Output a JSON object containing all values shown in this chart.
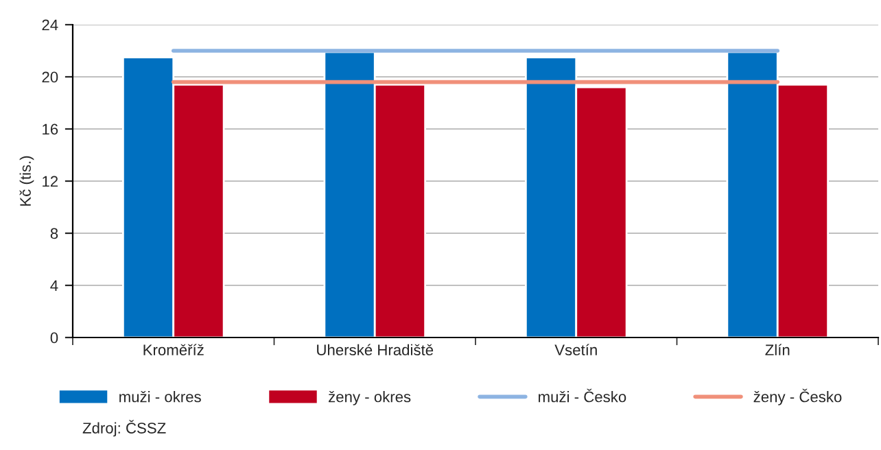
{
  "chart_data": {
    "type": "bar",
    "ylabel": "Kč (tis.)",
    "categories": [
      "Kroměříž",
      "Uherské Hradiště",
      "Vsetín",
      "Zlín"
    ],
    "series": [
      {
        "name": "muži - okres",
        "color": "#0070c0",
        "values": [
          21.5,
          21.9,
          21.5,
          21.9
        ]
      },
      {
        "name": "ženy - okres",
        "color": "#c00020",
        "values": [
          19.4,
          19.4,
          19.2,
          19.4
        ]
      },
      {
        "name": "muži - Česko",
        "type": "line",
        "color": "#8db4e2",
        "values": [
          22.0,
          22.0,
          22.0,
          22.0
        ]
      },
      {
        "name": "ženy - Česko",
        "type": "line",
        "color": "#f0907a",
        "values": [
          19.6,
          19.6,
          19.6,
          19.6
        ]
      }
    ],
    "ylim": [
      0,
      24
    ],
    "yticks": [
      0,
      4,
      8,
      12,
      16,
      20,
      24
    ],
    "grid": "y",
    "legend": "bottom",
    "annotations": [
      "Zdroj: ČSSZ"
    ]
  }
}
